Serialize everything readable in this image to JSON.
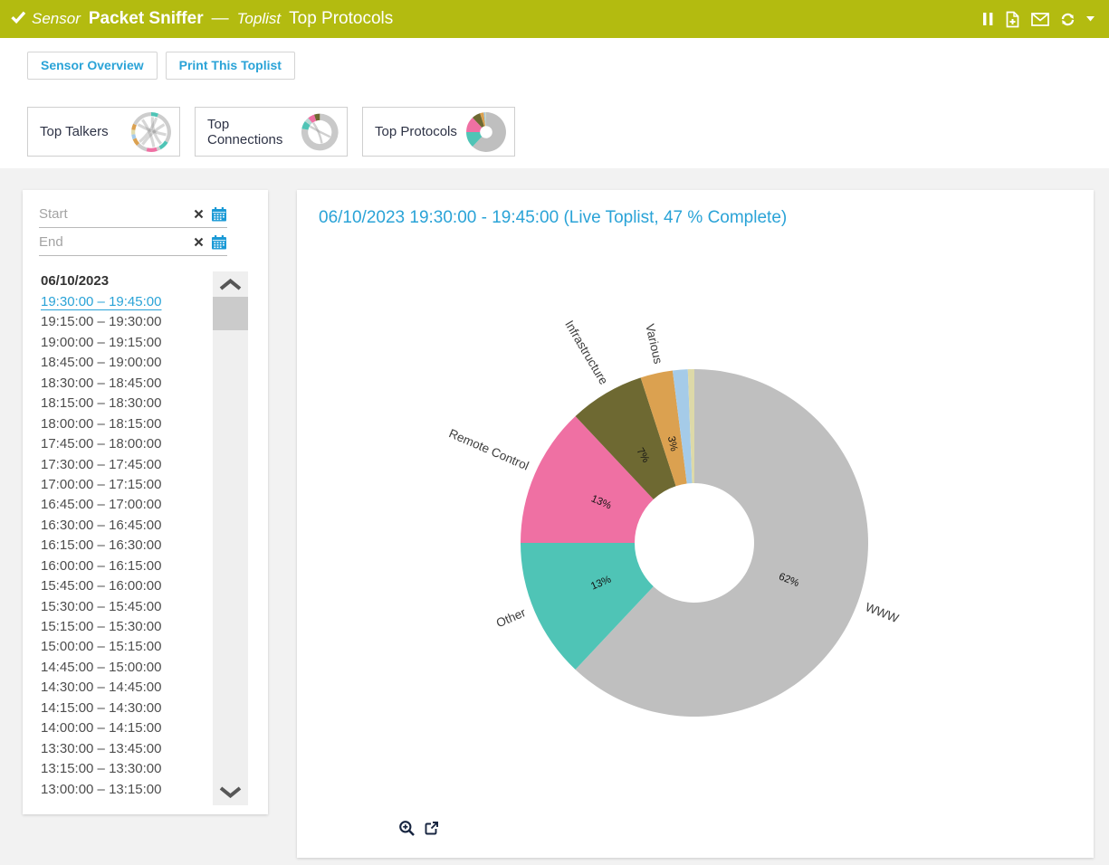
{
  "colors": {
    "header_bg": "#b3bb10",
    "accent_blue": "#2aa3d7",
    "page_bg": "#f2f2f2",
    "icon_navy": "#172540"
  },
  "header": {
    "status_icon": "check-icon",
    "sensor_label": "Sensor",
    "sensor_name": "Packet Sniffer",
    "separator": "—",
    "toplist_label": "Toplist",
    "toplist_name": "Top Protocols",
    "icons": [
      "pause-icon",
      "add-report-icon",
      "email-icon",
      "refresh-icon",
      "chevron-down-icon"
    ]
  },
  "toolbar": {
    "buttons": [
      {
        "label": "Sensor Overview"
      },
      {
        "label": "Print This Toplist"
      }
    ]
  },
  "tabs": [
    {
      "label": "Top Talkers",
      "icon": "chord-diagram-icon",
      "active": false,
      "icon_segments": [
        {
          "value": 6,
          "color": "#4fc4b6"
        },
        {
          "value": 28,
          "color": "#cdcdcd"
        },
        {
          "value": 8,
          "color": "#4fc4b6"
        },
        {
          "value": 3,
          "color": "#cdcdcd"
        },
        {
          "value": 9,
          "color": "#ef70a3"
        },
        {
          "value": 9,
          "color": "#cdcdcd"
        },
        {
          "value": 6,
          "color": "#dba150"
        },
        {
          "value": 4,
          "color": "#a5cbe8"
        },
        {
          "value": 4,
          "color": "#e0dcae"
        },
        {
          "value": 5,
          "color": "#dba150"
        },
        {
          "value": 18,
          "color": "#cdcdcd"
        }
      ]
    },
    {
      "label": "Top Connections",
      "icon": "connections-ring-icon",
      "active": false,
      "icon_segments": [
        {
          "value": 78,
          "color": "#c9c9c9"
        },
        {
          "value": 7,
          "color": "#4fc4b6"
        },
        {
          "value": 4,
          "color": "#b7d9d4"
        },
        {
          "value": 6,
          "color": "#ef70a3"
        },
        {
          "value": 5,
          "color": "#6e6932"
        }
      ]
    },
    {
      "label": "Top Protocols",
      "icon": "protocols-donut-icon",
      "active": true,
      "icon_segments": null
    }
  ],
  "sidebar": {
    "start_placeholder": "Start",
    "end_placeholder": "End",
    "date_header": "06/10/2023",
    "selected_index": 0,
    "intervals": [
      "19:30:00 – 19:45:00",
      "19:15:00 – 19:30:00",
      "19:00:00 – 19:15:00",
      "18:45:00 – 19:00:00",
      "18:30:00 – 18:45:00",
      "18:15:00 – 18:30:00",
      "18:00:00 – 18:15:00",
      "17:45:00 – 18:00:00",
      "17:30:00 – 17:45:00",
      "17:00:00 – 17:15:00",
      "16:45:00 – 17:00:00",
      "16:30:00 – 16:45:00",
      "16:15:00 – 16:30:00",
      "16:00:00 – 16:15:00",
      "15:45:00 – 16:00:00",
      "15:30:00 – 15:45:00",
      "15:15:00 – 15:30:00",
      "15:00:00 – 15:15:00",
      "14:45:00 – 15:00:00",
      "14:30:00 – 14:45:00",
      "14:15:00 – 14:30:00",
      "14:00:00 – 14:15:00",
      "13:30:00 – 13:45:00",
      "13:15:00 – 13:30:00",
      "13:00:00 – 13:15:00"
    ]
  },
  "chart_data": {
    "type": "pie",
    "title": "06/10/2023 19:30:00 - 19:45:00 (Live Toplist, 47 % Complete)",
    "donut_hole_ratio": 0.34,
    "start_angle_deg": 0,
    "direction": "clockwise",
    "legend_position": "none",
    "segments": [
      {
        "label": "WWW",
        "value": 62,
        "pct_label": "62%",
        "color": "#bfbfbf"
      },
      {
        "label": "Other",
        "value": 13,
        "pct_label": "13%",
        "color": "#4fc4b6"
      },
      {
        "label": "Remote Control",
        "value": 13,
        "pct_label": "13%",
        "color": "#ef70a3"
      },
      {
        "label": "Infrastructure",
        "value": 7,
        "pct_label": "7%",
        "color": "#6e6932"
      },
      {
        "label": "Various",
        "value": 3,
        "pct_label": "3%",
        "color": "#dba150"
      },
      {
        "label": "",
        "value": 1.4,
        "pct_label": "",
        "color": "#a5cbe8"
      },
      {
        "label": "",
        "value": 0.6,
        "pct_label": "",
        "color": "#ddd9a8"
      }
    ]
  },
  "chart_actions": [
    "zoom-in-icon",
    "external-link-icon"
  ]
}
